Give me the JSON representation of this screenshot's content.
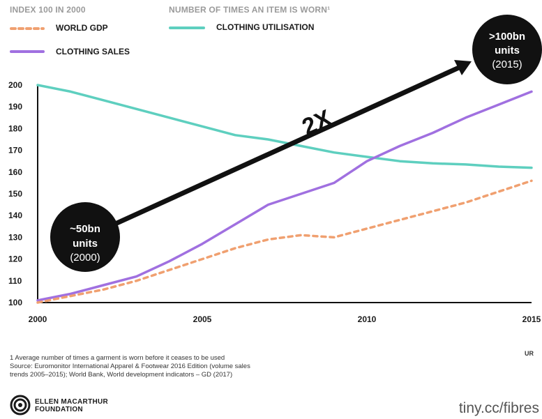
{
  "legend": {
    "left_header": "INDEX 100 IN 2000",
    "right_header": "NUMBER OF TIMES AN ITEM IS WORN¹",
    "world_gdp": "WORLD GDP",
    "clothing_sales": "CLOTHING SALES",
    "clothing_utilisation": "CLOTHING UTILISATION"
  },
  "colors": {
    "world_gdp": "#f0a070",
    "clothing_sales": "#a070e0",
    "clothing_utilisation": "#5ecfbf",
    "arrow": "#111111",
    "bubble": "#111111"
  },
  "annotations": {
    "start_bubble": {
      "line1": "~50bn",
      "line2": "units",
      "line3": "(2000)"
    },
    "end_bubble": {
      "line1": ">100bn",
      "line2": "units",
      "line3": "(2015)"
    },
    "arrow_label": "2X"
  },
  "chart_data": {
    "type": "line",
    "xlim": [
      2000,
      2015
    ],
    "ylim": [
      100,
      200
    ],
    "x_ticks": [
      "2000",
      "2005",
      "2010",
      "2015"
    ],
    "y_ticks": [
      "100",
      "110",
      "120",
      "130",
      "140",
      "150",
      "160",
      "170",
      "180",
      "190",
      "200"
    ],
    "series": [
      {
        "name": "CLOTHING UTILISATION",
        "style": "solid",
        "x": [
          2000,
          2001,
          2002,
          2003,
          2004,
          2005,
          2006,
          2007,
          2008,
          2009,
          2010,
          2011,
          2012,
          2013,
          2014,
          2015
        ],
        "values": [
          200,
          197,
          193,
          189,
          185,
          181,
          177,
          175,
          172,
          169,
          167,
          165,
          164,
          163.5,
          162.5,
          162
        ]
      },
      {
        "name": "CLOTHING SALES",
        "style": "solid",
        "x": [
          2000,
          2001,
          2002,
          2003,
          2004,
          2005,
          2006,
          2007,
          2008,
          2009,
          2010,
          2011,
          2012,
          2013,
          2014,
          2015
        ],
        "values": [
          101,
          104,
          108,
          112,
          119,
          127,
          136,
          145,
          150,
          155,
          165,
          172,
          178,
          185,
          191,
          197
        ]
      },
      {
        "name": "WORLD GDP",
        "style": "dashed",
        "x": [
          2000,
          2001,
          2002,
          2003,
          2004,
          2005,
          2006,
          2007,
          2008,
          2009,
          2010,
          2011,
          2012,
          2013,
          2014,
          2015
        ],
        "values": [
          100,
          103,
          106,
          110,
          115,
          120,
          125,
          129,
          131,
          130,
          134,
          138,
          142,
          146,
          151,
          156
        ]
      }
    ]
  },
  "footnotes": {
    "line1": "1 Average number of times a garment is worn before it ceases to be used",
    "line2": "Source: Euromonitor International Apparel & Footwear 2016 Edition (volume sales",
    "line3": "trends 2005–2015); World Bank, World development indicators – GD (2017)"
  },
  "corner_mark": "UR",
  "logo": {
    "line1": "ELLEN MACARTHUR",
    "line2": "FOUNDATION",
    "icon": "foundation-logo-icon"
  },
  "url": "tiny.cc/fibres"
}
